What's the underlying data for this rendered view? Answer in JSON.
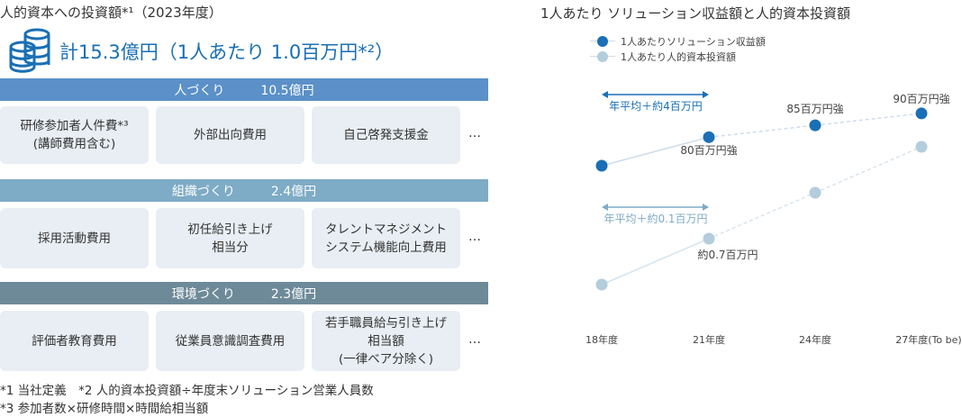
{
  "left": {
    "title": "人的資本への投資額*¹（2023年度）",
    "total": "計15.3億円（1人あたり 1.0百万円*²）",
    "sections": [
      {
        "name": "人づくり",
        "amount": "10.5億円",
        "color": "#5b90c8",
        "items": [
          "研修参加者人件費*³\n(講師費用含む)",
          "外部出向費用",
          "自己啓発支援金"
        ]
      },
      {
        "name": "組織づくり",
        "amount": "2.4億円",
        "color": "#7eabc5",
        "items": [
          "採用活動費用",
          "初任給引き上げ\n相当分",
          "タレントマネジメント\nシステム機能向上費用"
        ]
      },
      {
        "name": "環境づくり",
        "amount": "2.3億円",
        "color": "#6e8a99",
        "items": [
          "評価者教育費用",
          "従業員意識調査費用",
          "若手職員給与引き上げ\n相当額\n(一律ベア分除く)"
        ]
      }
    ],
    "ellipsis": "…",
    "footnotes": [
      "*1 当社定義　*2 人的資本投資額÷年度末ソリューション営業人員数",
      "*3 参加者数×研修時間×時間給相当額"
    ]
  },
  "chart_data": {
    "type": "line",
    "title": "1人あたり ソリューション収益額と人的資本投資額",
    "categories": [
      "18年度",
      "21年度",
      "24年度",
      "27年度(To be)"
    ],
    "series": [
      {
        "name": "1人あたりソリューション収益額",
        "unit": "百万円",
        "values": [
          68,
          80,
          85,
          90
        ],
        "color": "#1a6fb5",
        "labels": [
          "",
          "80百万円強",
          "85百万円強",
          "90百万円強"
        ]
      },
      {
        "name": "1人あたり人的資本投資額",
        "unit": "百万円",
        "values": [
          0.4,
          0.7,
          1.0,
          1.3
        ],
        "color": "#b3cddd",
        "labels": [
          "",
          "約0.7百万円",
          "",
          ""
        ]
      }
    ],
    "annotations": [
      {
        "text": "年平均＋約4百万円",
        "from": "18年度",
        "to": "21年度",
        "color": "#1a6fb5"
      },
      {
        "text": "年平均＋約0.1百万円",
        "from": "18年度",
        "to": "21年度",
        "color": "#7fabc6"
      }
    ],
    "solid_until": "21年度",
    "legend": "top-left"
  }
}
